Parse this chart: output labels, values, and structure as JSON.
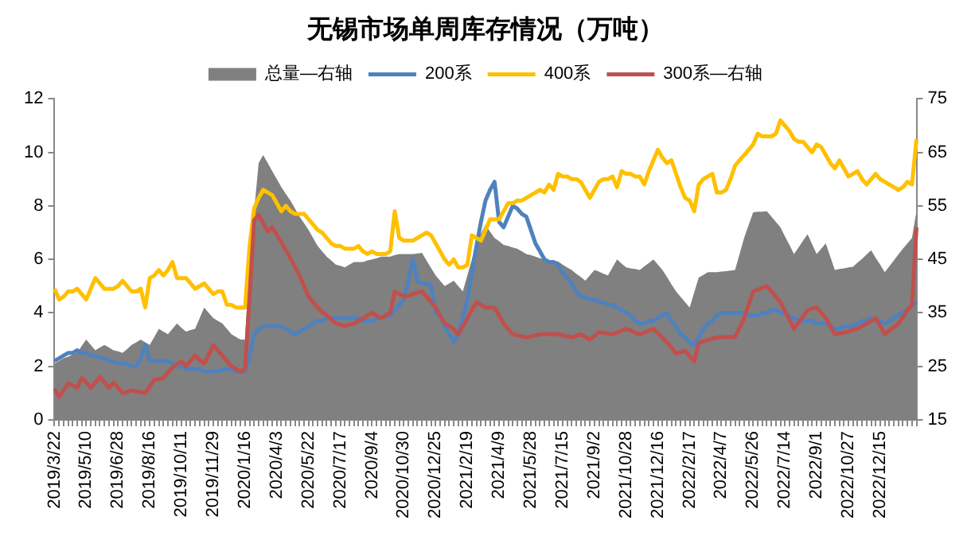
{
  "chart_data": {
    "type": "line",
    "title": "无锡市场单周库存情况（万吨）",
    "categories": [
      "2019/3/22",
      null,
      null,
      null,
      null,
      null,
      null,
      "2019/5/10",
      null,
      null,
      null,
      null,
      null,
      null,
      "2019/6/28",
      null,
      null,
      null,
      null,
      null,
      null,
      "2019/8/16",
      null,
      null,
      null,
      null,
      null,
      null,
      "2019/10/11",
      null,
      null,
      null,
      null,
      null,
      null,
      "2019/11/29",
      null,
      null,
      null,
      null,
      null,
      null,
      "2020/1/16",
      null,
      null,
      null,
      null,
      null,
      null,
      "2020/4/3",
      null,
      null,
      null,
      null,
      null,
      null,
      "2020/5/22",
      null,
      null,
      null,
      null,
      null,
      null,
      "2020/7/17",
      null,
      null,
      null,
      null,
      null,
      null,
      "2020/9/4",
      null,
      null,
      null,
      null,
      null,
      null,
      "2020/10/30",
      null,
      null,
      null,
      null,
      null,
      null,
      "2020/12/25",
      null,
      null,
      null,
      null,
      null,
      null,
      "2021/2/19",
      null,
      null,
      null,
      null,
      null,
      null,
      "2021/4/9",
      null,
      null,
      null,
      null,
      null,
      null,
      "2021/5/28",
      null,
      null,
      null,
      null,
      null,
      null,
      "2021/7/15",
      null,
      null,
      null,
      null,
      null,
      null,
      "2021/9/2",
      null,
      null,
      null,
      null,
      null,
      null,
      "2021/10/28",
      null,
      null,
      null,
      null,
      null,
      null,
      "2021/12/16",
      null,
      null,
      null,
      null,
      null,
      null,
      "2022/2/17",
      null,
      null,
      null,
      null,
      null,
      null,
      "2022/4/7",
      null,
      null,
      null,
      null,
      null,
      null,
      "2022/5/26",
      null,
      null,
      null,
      null,
      null,
      null,
      "2022/7/14",
      null,
      null,
      null,
      null,
      null,
      null,
      "2022/9/1",
      null,
      null,
      null,
      null,
      null,
      null,
      "2022/10/27",
      null,
      null,
      null,
      null,
      null,
      null,
      "2022/12/15",
      null,
      null,
      null,
      null,
      null,
      null,
      null,
      null
    ],
    "series": [
      {
        "name": "总量—右轴",
        "type": "area",
        "axis": "y2",
        "color": "#808080",
        "values": [
          25.5,
          26,
          26.5,
          26.8,
          27.2,
          27.5,
          28.8,
          30,
          29,
          28,
          28.5,
          29,
          28.5,
          28,
          27.8,
          27.5,
          28.2,
          29,
          29.5,
          30,
          29.5,
          29,
          30.5,
          32,
          31.5,
          31,
          32,
          33,
          32.2,
          31.5,
          31.8,
          32,
          34,
          36,
          35,
          34,
          33.5,
          33,
          32,
          31,
          30.5,
          30,
          30,
          45,
          54,
          63,
          64.5,
          63,
          61.5,
          60,
          58.5,
          57.2,
          56,
          54.5,
          53,
          51.8,
          50.5,
          49,
          47.5,
          46.5,
          45.5,
          44.8,
          44,
          43.8,
          43.5,
          44,
          44.5,
          44.5,
          44.5,
          44.8,
          45,
          45.2,
          45.5,
          45.5,
          45.5,
          45.8,
          46,
          46,
          46,
          46,
          46.1,
          46.2,
          44.8,
          43.4,
          42,
          41,
          40,
          40.5,
          41,
          40,
          39,
          42,
          45,
          48,
          49.8,
          51.5,
          50.2,
          49,
          48.4,
          47.7,
          47.5,
          47.2,
          47,
          46.5,
          46,
          45.8,
          45.5,
          45.2,
          45,
          44.9,
          44.7,
          44.6,
          44,
          43.5,
          43,
          42.3,
          41.7,
          41,
          42,
          43,
          42.7,
          42.3,
          42,
          43.5,
          45,
          44.2,
          43.5,
          43.3,
          43.2,
          43,
          43.7,
          44.3,
          45,
          44,
          43,
          41.7,
          40.3,
          39,
          38,
          37,
          36,
          38.8,
          41.6,
          42.1,
          42.6,
          42.6,
          42.6,
          42.7,
          42.8,
          42.9,
          43,
          46,
          49,
          51.4,
          53.8,
          53.9,
          53.9,
          54,
          53,
          52,
          51,
          49.3,
          47.7,
          46,
          47.2,
          48.5,
          49.7,
          47.8,
          46,
          47,
          48,
          45.5,
          43,
          43.2,
          43.3,
          43.5,
          43.6,
          44.4,
          45.1,
          45.9,
          46.7,
          45.3,
          44,
          42.6,
          43.7,
          44.8,
          45.9,
          47,
          48,
          49,
          54
        ]
      },
      {
        "name": "200系",
        "color": "#4f81bd",
        "values": [
          2.2,
          2.3,
          2.4,
          2.5,
          2.5,
          2.6,
          2.5,
          2.5,
          2.4,
          2.4,
          2.3,
          2.3,
          2.2,
          2.2,
          2.1,
          2.1,
          2.1,
          2.0,
          2.0,
          2.3,
          2.8,
          2.2,
          2.2,
          2.2,
          2.2,
          2.2,
          2.1,
          2.0,
          2.0,
          1.9,
          1.9,
          1.9,
          1.9,
          1.8,
          1.8,
          1.8,
          1.8,
          1.9,
          1.9,
          1.9,
          1.8,
          1.8,
          1.8,
          2.4,
          3.2,
          3.4,
          3.5,
          3.5,
          3.5,
          3.5,
          3.5,
          3.4,
          3.3,
          3.2,
          3.3,
          3.4,
          3.5,
          3.6,
          3.7,
          3.7,
          3.8,
          3.8,
          3.8,
          3.8,
          3.8,
          3.8,
          3.8,
          3.8,
          3.7,
          3.7,
          3.7,
          3.8,
          3.8,
          3.9,
          3.9,
          4.1,
          4.3,
          4.5,
          5.2,
          6.0,
          5.2,
          5.1,
          5.1,
          5.0,
          4.0,
          3.9,
          3.5,
          3.2,
          2.9,
          3.2,
          3.8,
          4.5,
          5.5,
          6.5,
          7.4,
          8.2,
          8.6,
          8.9,
          7.4,
          7.2,
          7.6,
          8.0,
          7.9,
          7.7,
          7.6,
          7.1,
          6.6,
          6.3,
          6.0,
          5.9,
          5.9,
          5.8,
          5.5,
          5.3,
          5.1,
          4.8,
          4.6,
          4.6,
          4.5,
          4.5,
          4.4,
          4.4,
          4.3,
          4.3,
          4.2,
          4.1,
          4.0,
          3.9,
          3.7,
          3.6,
          3.6,
          3.7,
          3.7,
          3.8,
          3.9,
          4.0,
          3.7,
          3.5,
          3.2,
          3.1,
          2.9,
          2.8,
          3.1,
          3.4,
          3.6,
          3.7,
          3.9,
          4.0,
          4.0,
          4.0,
          4.0,
          4.0,
          4.0,
          3.9,
          3.9,
          3.9,
          4.0,
          4.0,
          4.1,
          4.1,
          4.0,
          4.0,
          3.9,
          3.8,
          3.7,
          3.7,
          3.7,
          3.7,
          3.6,
          3.6,
          3.6,
          3.5,
          3.4,
          3.4,
          3.5,
          3.5,
          3.5,
          3.6,
          3.7,
          3.7,
          3.8,
          3.7,
          3.7,
          3.6,
          3.7,
          3.8,
          3.9,
          4.0,
          4.1,
          4.3,
          4.4
        ]
      },
      {
        "name": "400系",
        "color": "#ffc000",
        "values": [
          4.9,
          4.5,
          4.6,
          4.8,
          4.8,
          4.9,
          4.7,
          4.5,
          4.9,
          5.3,
          5.1,
          4.9,
          4.9,
          4.9,
          5.0,
          5.2,
          5.0,
          4.8,
          4.8,
          4.9,
          4.2,
          5.3,
          5.4,
          5.6,
          5.4,
          5.6,
          5.9,
          5.3,
          5.3,
          5.3,
          5.1,
          4.9,
          5.0,
          5.1,
          4.9,
          4.7,
          4.8,
          4.8,
          4.3,
          4.3,
          4.2,
          4.2,
          4.2,
          6.5,
          7.9,
          8.3,
          8.6,
          8.5,
          8.4,
          8.1,
          7.8,
          8.0,
          7.8,
          7.7,
          7.7,
          7.7,
          7.5,
          7.3,
          7.1,
          7.0,
          6.8,
          6.6,
          6.5,
          6.5,
          6.4,
          6.4,
          6.4,
          6.5,
          6.3,
          6.2,
          6.3,
          6.2,
          6.2,
          6.2,
          6.3,
          7.8,
          6.8,
          6.7,
          6.7,
          6.7,
          6.8,
          6.9,
          7.0,
          6.9,
          6.6,
          6.3,
          6.0,
          5.8,
          6.0,
          5.7,
          5.7,
          5.8,
          6.9,
          6.8,
          6.7,
          7.1,
          7.5,
          7.5,
          7.5,
          7.8,
          8.1,
          8.1,
          8.2,
          8.2,
          8.3,
          8.4,
          8.5,
          8.6,
          8.5,
          8.8,
          8.6,
          9.2,
          9.1,
          9.1,
          9.0,
          9.0,
          8.9,
          8.6,
          8.3,
          8.6,
          8.9,
          9.0,
          9.0,
          9.1,
          8.7,
          9.3,
          9.2,
          9.2,
          9.1,
          9.1,
          8.8,
          9.3,
          9.7,
          10.1,
          9.8,
          9.6,
          9.7,
          9.2,
          8.7,
          8.3,
          8.2,
          7.8,
          8.8,
          9.0,
          9.1,
          9.2,
          8.5,
          8.5,
          8.6,
          9.0,
          9.5,
          9.7,
          9.9,
          10.1,
          10.3,
          10.7,
          10.6,
          10.6,
          10.6,
          10.7,
          11.2,
          11.0,
          10.8,
          10.5,
          10.4,
          10.4,
          10.2,
          10.0,
          10.3,
          10.2,
          9.9,
          9.6,
          9.4,
          9.7,
          9.4,
          9.1,
          9.2,
          9.3,
          9.0,
          8.8,
          9.0,
          9.2,
          9.0,
          8.9,
          8.8,
          8.7,
          8.6,
          8.7,
          8.9,
          8.8,
          10.5
        ]
      },
      {
        "name": "300系—右轴",
        "axis": "y2",
        "color": "#c0504d",
        "values": [
          20.8,
          19.3,
          20.5,
          21.8,
          21.4,
          21.0,
          22.8,
          22,
          21,
          22,
          23,
          22,
          21,
          22,
          21,
          20,
          20.2,
          20.5,
          20.3,
          20.2,
          20,
          21.2,
          22.5,
          22.6,
          22.8,
          23.8,
          24.8,
          25.4,
          25.9,
          25,
          26,
          27,
          26.2,
          25.5,
          27.2,
          29,
          28,
          27,
          26,
          25,
          24.5,
          24,
          24.5,
          38,
          52.3,
          53.3,
          51.8,
          50.2,
          51,
          49.6,
          48.2,
          46.7,
          45.2,
          43.6,
          42,
          40,
          38,
          37,
          36,
          35.2,
          34.5,
          33.8,
          33,
          32.8,
          32.5,
          32.8,
          33,
          33.5,
          34,
          34.5,
          35,
          34.5,
          34,
          34.5,
          35,
          39,
          38.5,
          38,
          38.2,
          38.5,
          38.8,
          39,
          38,
          37,
          36,
          34.5,
          33,
          32.5,
          32,
          31,
          32.5,
          34,
          35.5,
          37,
          36.5,
          36,
          36,
          36,
          34.5,
          33,
          32,
          31,
          30.8,
          30.6,
          30.4,
          30.6,
          30.8,
          31,
          31,
          31,
          31,
          31,
          30.8,
          30.6,
          30.4,
          30.7,
          31,
          30.5,
          30,
          30.7,
          31.4,
          31.3,
          31.1,
          31,
          31.3,
          31.7,
          32,
          31.7,
          31.3,
          31,
          31.3,
          31.7,
          32,
          31.2,
          30.4,
          29.5,
          28.5,
          27.4,
          27.6,
          27.9,
          26.9,
          25.9,
          29.4,
          29.7,
          29.9,
          30.2,
          30.4,
          30.4,
          30.5,
          30.5,
          30.5,
          32.2,
          34,
          36.5,
          39,
          39.3,
          39.7,
          40,
          39,
          38,
          37,
          35.3,
          33.7,
          32,
          33.2,
          34.3,
          35.5,
          35.8,
          36,
          35,
          34,
          32.5,
          31,
          31.2,
          31.3,
          31.5,
          31.8,
          32,
          32.5,
          33,
          33.5,
          34,
          32.5,
          31,
          31.7,
          32.3,
          33,
          34.2,
          35.5,
          36.5,
          51
        ]
      }
    ],
    "ylim": [
      0,
      12
    ],
    "yticks": [
      0,
      2,
      4,
      6,
      8,
      10,
      12
    ],
    "y2lim": [
      15,
      75
    ],
    "y2ticks": [
      15,
      25,
      35,
      45,
      55,
      65,
      75
    ],
    "legend": "top",
    "grid": false,
    "marker": "none"
  }
}
